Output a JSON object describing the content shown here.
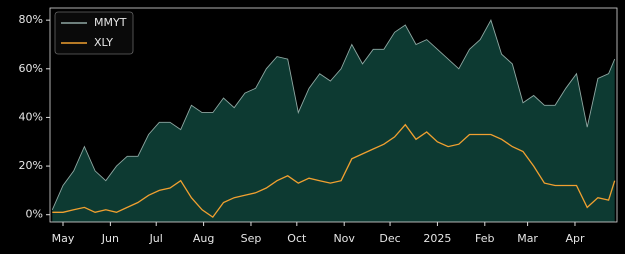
{
  "chart_data": {
    "type": "line",
    "x": [
      0,
      7,
      14,
      21,
      28,
      35,
      42,
      49,
      56,
      63,
      70,
      77,
      84,
      91,
      98,
      105,
      112,
      119,
      126,
      133,
      140,
      147,
      154,
      161,
      168,
      175,
      182,
      189,
      196,
      203,
      210,
      217,
      224,
      231,
      238,
      245,
      252,
      259,
      266,
      273,
      280,
      287,
      294,
      301,
      308,
      315,
      322,
      329,
      336,
      343,
      350,
      357,
      364,
      368
    ],
    "series": [
      {
        "name": "MMYT",
        "color": "#8fa8a3",
        "fill_color": "#0d3a32",
        "values": [
          2,
          12,
          18,
          28,
          18,
          14,
          20,
          24,
          24,
          33,
          38,
          38,
          35,
          45,
          42,
          42,
          48,
          44,
          50,
          52,
          60,
          65,
          64,
          42,
          52,
          58,
          55,
          60,
          70,
          62,
          68,
          68,
          75,
          78,
          70,
          72,
          68,
          64,
          60,
          68,
          72,
          80,
          66,
          62,
          46,
          49,
          45,
          45,
          52,
          58,
          36,
          56,
          58,
          64
        ]
      },
      {
        "name": "XLY",
        "color": "#f0a030",
        "values": [
          1,
          1,
          2,
          3,
          1,
          2,
          1,
          3,
          5,
          8,
          10,
          11,
          14,
          7,
          2,
          -1,
          5,
          7,
          8,
          9,
          11,
          14,
          16,
          13,
          15,
          14,
          13,
          14,
          23,
          25,
          27,
          29,
          32,
          37,
          31,
          34,
          30,
          28,
          29,
          33,
          33,
          33,
          31,
          28,
          26,
          20,
          13,
          12,
          12,
          12,
          3,
          7,
          6,
          14
        ]
      }
    ],
    "xlim": [
      -1.5,
      369.5
    ],
    "xticks": [
      {
        "value": 7,
        "label": "May"
      },
      {
        "value": 38,
        "label": "Jun"
      },
      {
        "value": 68,
        "label": "Jul"
      },
      {
        "value": 99,
        "label": "Aug"
      },
      {
        "value": 130,
        "label": "Sep"
      },
      {
        "value": 160,
        "label": "Oct"
      },
      {
        "value": 191,
        "label": "Nov"
      },
      {
        "value": 221,
        "label": "Dec"
      },
      {
        "value": 252,
        "label": "2025"
      },
      {
        "value": 283,
        "label": "Feb"
      },
      {
        "value": 311,
        "label": "Mar"
      },
      {
        "value": 342,
        "label": "Apr"
      }
    ],
    "ylim": [
      -3,
      85
    ],
    "yticks": [
      {
        "value": 0,
        "label": "0%"
      },
      {
        "value": 20,
        "label": "20%"
      },
      {
        "value": 40,
        "label": "40%"
      },
      {
        "value": 60,
        "label": "60%"
      },
      {
        "value": 80,
        "label": "80%"
      }
    ],
    "legend": "upper left"
  }
}
